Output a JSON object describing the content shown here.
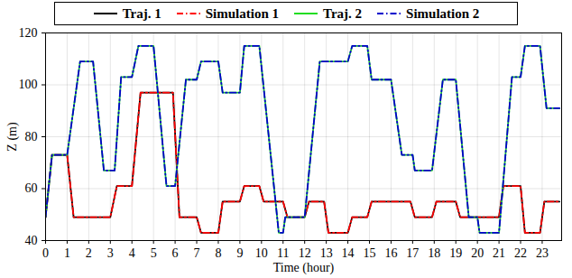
{
  "chart_data": {
    "type": "line",
    "x_label": "Time (hour)",
    "y_label": "Z (m)",
    "xlim": [
      0,
      23.9
    ],
    "xticks": [
      0,
      1,
      2,
      3,
      4,
      5,
      6,
      7,
      8,
      9,
      10,
      11,
      12,
      13,
      14,
      15,
      16,
      17,
      18,
      19,
      20,
      21,
      22,
      23
    ],
    "ylim": [
      40,
      120
    ],
    "yticks": [
      40,
      60,
      80,
      100,
      120
    ],
    "grid": true,
    "legend": "top",
    "series": [
      {
        "name": "Traj. 1",
        "color": "#000000",
        "line_style": "solid",
        "x": [
          0,
          0.3,
          1.0,
          1.3,
          3.0,
          3.3,
          4.0,
          4.4,
          5.9,
          6.2,
          7.0,
          7.2,
          8.0,
          8.2,
          9.0,
          9.2,
          9.9,
          10.1,
          11.0,
          11.2,
          12.0,
          12.2,
          12.9,
          13.1,
          14.0,
          14.2,
          14.9,
          15.1,
          16.9,
          17.1,
          17.9,
          18.1,
          19.0,
          19.2,
          21.0,
          21.2,
          22.0,
          22.2,
          22.9,
          23.1,
          23.8
        ],
        "values": [
          49,
          73,
          73,
          49,
          49,
          61,
          61,
          97,
          97,
          49,
          49,
          43,
          43,
          55,
          55,
          61,
          61,
          55,
          55,
          49,
          49,
          55,
          55,
          43,
          43,
          49,
          49,
          55,
          55,
          49,
          49,
          55,
          55,
          49,
          49,
          61,
          61,
          43,
          43,
          55,
          55
        ]
      },
      {
        "name": "Simulation 1",
        "color": "#ff0000",
        "line_style": "dashdot",
        "x": [
          0,
          0.3,
          1.0,
          1.3,
          3.0,
          3.3,
          4.0,
          4.4,
          5.9,
          6.2,
          7.0,
          7.2,
          8.0,
          8.2,
          9.0,
          9.2,
          9.9,
          10.1,
          11.0,
          11.2,
          12.0,
          12.2,
          12.9,
          13.1,
          14.0,
          14.2,
          14.9,
          15.1,
          16.9,
          17.1,
          17.9,
          18.1,
          19.0,
          19.2,
          21.0,
          21.2,
          22.0,
          22.2,
          22.9,
          23.1,
          23.8
        ],
        "values": [
          49,
          73,
          73,
          49,
          49,
          61,
          61,
          97,
          97,
          49,
          49,
          43,
          43,
          55,
          55,
          61,
          61,
          55,
          55,
          49,
          49,
          55,
          55,
          43,
          43,
          49,
          49,
          55,
          55,
          49,
          49,
          55,
          55,
          49,
          49,
          61,
          61,
          43,
          43,
          55,
          55
        ]
      },
      {
        "name": "Traj. 2",
        "color": "#22dd22",
        "line_style": "solid",
        "x": [
          0,
          0.3,
          1.0,
          1.6,
          2.2,
          2.7,
          3.2,
          3.5,
          4.0,
          4.3,
          5.0,
          5.6,
          6.0,
          6.5,
          7.0,
          7.2,
          8.0,
          8.2,
          9.0,
          9.2,
          9.9,
          10.8,
          11.0,
          11.1,
          12.0,
          12.7,
          14.0,
          14.2,
          14.9,
          15.1,
          16.0,
          16.5,
          17.0,
          17.1,
          17.9,
          18.4,
          19.0,
          19.6,
          20.0,
          20.1,
          21.0,
          21.6,
          22.0,
          22.2,
          22.9,
          23.2,
          23.8
        ],
        "values": [
          49,
          73,
          73,
          109,
          109,
          67,
          67,
          103,
          103,
          115,
          115,
          61,
          61,
          102,
          102,
          109,
          109,
          97,
          97,
          115,
          115,
          43,
          43,
          49,
          49,
          109,
          109,
          115,
          115,
          102,
          102,
          73,
          73,
          67,
          67,
          102,
          102,
          49,
          49,
          43,
          43,
          103,
          103,
          115,
          115,
          91,
          91
        ]
      },
      {
        "name": "Simulation 2",
        "color": "#0000cc",
        "line_style": "dashdot",
        "x": [
          0,
          0.3,
          1.0,
          1.6,
          2.2,
          2.7,
          3.2,
          3.5,
          4.0,
          4.3,
          5.0,
          5.6,
          6.0,
          6.5,
          7.0,
          7.2,
          8.0,
          8.2,
          9.0,
          9.2,
          9.9,
          10.8,
          11.0,
          11.1,
          12.0,
          12.7,
          14.0,
          14.2,
          14.9,
          15.1,
          16.0,
          16.5,
          17.0,
          17.1,
          17.9,
          18.4,
          19.0,
          19.6,
          20.0,
          20.1,
          21.0,
          21.6,
          22.0,
          22.2,
          22.9,
          23.2,
          23.8
        ],
        "values": [
          49,
          73,
          73,
          109,
          109,
          67,
          67,
          103,
          103,
          115,
          115,
          61,
          61,
          102,
          102,
          109,
          109,
          97,
          97,
          115,
          115,
          43,
          43,
          49,
          49,
          109,
          109,
          115,
          115,
          102,
          102,
          73,
          73,
          67,
          67,
          102,
          102,
          49,
          49,
          43,
          43,
          103,
          103,
          115,
          115,
          91,
          91
        ]
      }
    ]
  }
}
